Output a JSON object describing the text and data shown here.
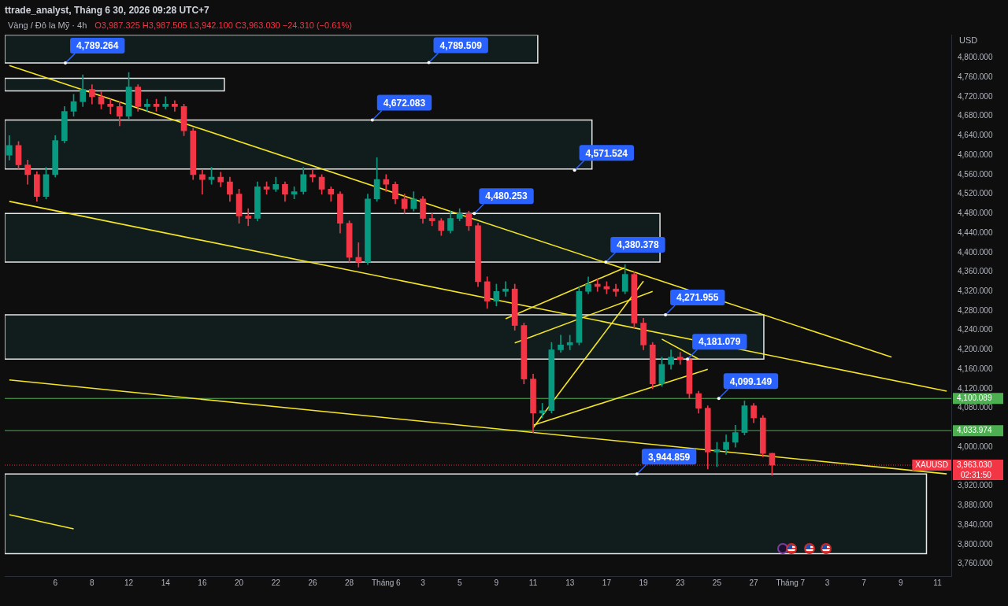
{
  "chart_data": {
    "type": "candlestick",
    "title": "ttrade_analyst, Tháng 6 30, 2026 09:28 UTC+7",
    "subtitle": "Vàng / Đô la Mỹ · 4h",
    "ylabel": "USD",
    "categories": [
      null,
      null,
      null,
      null,
      null,
      "6",
      null,
      null,
      null,
      "8",
      null,
      null,
      null,
      "12",
      null,
      null,
      null,
      "14",
      null,
      null,
      null,
      "16",
      null,
      null,
      null,
      "20",
      null,
      null,
      null,
      "22",
      null,
      null,
      null,
      "26",
      null,
      null,
      null,
      "28",
      null,
      null,
      null,
      "Tháng 6",
      null,
      null,
      null,
      "3",
      null,
      null,
      null,
      "5",
      null,
      null,
      null,
      "9",
      null,
      null,
      null,
      "11",
      null,
      null,
      null,
      "13",
      null,
      null,
      null,
      "17",
      null,
      null,
      null,
      "19",
      null,
      null,
      null,
      "23",
      null,
      null,
      null,
      "25",
      null,
      null,
      null,
      "27",
      null,
      null,
      null,
      "Tháng 7",
      null,
      null,
      null,
      "3",
      null,
      null,
      null,
      "7",
      null,
      null,
      null,
      "9",
      null,
      null,
      null,
      "11",
      null
    ],
    "ohlc": [
      [
        4600,
        4640,
        4590,
        4620
      ],
      [
        4620,
        4628,
        4572,
        4580
      ],
      [
        4580,
        4590,
        4540,
        4560
      ],
      [
        4560,
        4566,
        4505,
        4515
      ],
      [
        4515,
        4575,
        4510,
        4560
      ],
      [
        4560,
        4640,
        4555,
        4630
      ],
      [
        4630,
        4700,
        4625,
        4690
      ],
      [
        4690,
        4725,
        4680,
        4710
      ],
      [
        4710,
        4765,
        4700,
        4735
      ],
      [
        4735,
        4745,
        4705,
        4720
      ],
      [
        4720,
        4730,
        4695,
        4705
      ],
      [
        4705,
        4715,
        4685,
        4700
      ],
      [
        4700,
        4710,
        4660,
        4680
      ],
      [
        4680,
        4770,
        4675,
        4740
      ],
      [
        4740,
        4745,
        4690,
        4700
      ],
      [
        4700,
        4715,
        4690,
        4705
      ],
      [
        4705,
        4715,
        4690,
        4700
      ],
      [
        4700,
        4720,
        4695,
        4705
      ],
      [
        4705,
        4712,
        4690,
        4700
      ],
      [
        4700,
        4705,
        4640,
        4650
      ],
      [
        4650,
        4655,
        4550,
        4560
      ],
      [
        4560,
        4570,
        4520,
        4550
      ],
      [
        4550,
        4575,
        4540,
        4555
      ],
      [
        4555,
        4565,
        4535,
        4545
      ],
      [
        4545,
        4555,
        4505,
        4520
      ],
      [
        4520,
        4530,
        4460,
        4475
      ],
      [
        4475,
        4490,
        4455,
        4470
      ],
      [
        4470,
        4545,
        4465,
        4535
      ],
      [
        4535,
        4545,
        4520,
        4530
      ],
      [
        4530,
        4555,
        4525,
        4540
      ],
      [
        4540,
        4545,
        4505,
        4520
      ],
      [
        4520,
        4535,
        4510,
        4525
      ],
      [
        4525,
        4575,
        4520,
        4560
      ],
      [
        4560,
        4570,
        4545,
        4555
      ],
      [
        4555,
        4560,
        4520,
        4530
      ],
      [
        4530,
        4535,
        4505,
        4520
      ],
      [
        4520,
        4525,
        4440,
        4460
      ],
      [
        4460,
        4465,
        4380,
        4390
      ],
      [
        4390,
        4420,
        4370,
        4380
      ],
      [
        4380,
        4520,
        4375,
        4510
      ],
      [
        4510,
        4595,
        4505,
        4550
      ],
      [
        4550,
        4560,
        4525,
        4540
      ],
      [
        4540,
        4545,
        4500,
        4510
      ],
      [
        4510,
        4520,
        4480,
        4490
      ],
      [
        4490,
        4525,
        4485,
        4510
      ],
      [
        4510,
        4515,
        4460,
        4470
      ],
      [
        4470,
        4480,
        4455,
        4465
      ],
      [
        4465,
        4470,
        4435,
        4445
      ],
      [
        4445,
        4485,
        4440,
        4470
      ],
      [
        4470,
        4490,
        4465,
        4480
      ],
      [
        4480,
        4485,
        4445,
        4455
      ],
      [
        4455,
        4460,
        4330,
        4340
      ],
      [
        4340,
        4350,
        4285,
        4300
      ],
      [
        4300,
        4335,
        4290,
        4320
      ],
      [
        4320,
        4340,
        4310,
        4325
      ],
      [
        4325,
        4335,
        4240,
        4250
      ],
      [
        4250,
        4255,
        4130,
        4140
      ],
      [
        4140,
        4150,
        4030,
        4070
      ],
      [
        4070,
        4090,
        4060,
        4075
      ],
      [
        4075,
        4215,
        4070,
        4200
      ],
      [
        4200,
        4230,
        4195,
        4210
      ],
      [
        4210,
        4230,
        4200,
        4215
      ],
      [
        4215,
        4330,
        4210,
        4320
      ],
      [
        4320,
        4350,
        4315,
        4335
      ],
      [
        4335,
        4345,
        4320,
        4330
      ],
      [
        4330,
        4340,
        4315,
        4325
      ],
      [
        4325,
        4335,
        4310,
        4320
      ],
      [
        4320,
        4375,
        4315,
        4355
      ],
      [
        4355,
        4360,
        4245,
        4255
      ],
      [
        4255,
        4265,
        4200,
        4210
      ],
      [
        4210,
        4215,
        4120,
        4130
      ],
      [
        4130,
        4185,
        4125,
        4170
      ],
      [
        4170,
        4200,
        4160,
        4185
      ],
      [
        4185,
        4195,
        4170,
        4180
      ],
      [
        4180,
        4185,
        4100,
        4110
      ],
      [
        4110,
        4115,
        4070,
        4080
      ],
      [
        4080,
        4085,
        3955,
        3990
      ],
      [
        3990,
        4010,
        3960,
        3995
      ],
      [
        3995,
        4025,
        3985,
        4010
      ],
      [
        4010,
        4045,
        4000,
        4030
      ],
      [
        4030,
        4095,
        4025,
        4085
      ],
      [
        4085,
        4090,
        4050,
        4060
      ],
      [
        4060,
        4065,
        3980,
        3987
      ],
      [
        3987.325,
        3987.505,
        3942.1,
        3963.03
      ],
      null,
      null,
      null,
      null,
      null,
      null,
      null,
      null,
      null,
      null,
      null,
      null,
      null,
      null,
      null,
      null,
      null,
      null,
      null
    ],
    "colors": [
      "#089981",
      "#f23645",
      "#f23645",
      "#f23645",
      "#089981",
      "#089981",
      "#089981",
      "#089981",
      "#089981",
      "#f23645",
      "#f23645",
      "#f23645",
      "#f23645",
      "#089981",
      "#f23645",
      "#089981",
      "#f23645",
      "#089981",
      "#f23645",
      "#f23645",
      "#f23645",
      "#f23645",
      "#089981",
      "#f23645",
      "#f23645",
      "#f23645",
      "#f23645",
      "#089981",
      "#f23645",
      "#089981",
      "#f23645",
      "#089981",
      "#089981",
      "#f23645",
      "#f23645",
      "#f23645",
      "#f23645",
      "#f23645",
      "#f23645",
      "#089981",
      "#089981",
      "#f23645",
      "#f23645",
      "#f23645",
      "#089981",
      "#f23645",
      "#f23645",
      "#f23645",
      "#089981",
      "#089981",
      "#f23645",
      "#f23645",
      "#f23645",
      "#089981",
      "#089981",
      "#f23645",
      "#f23645",
      "#f23645",
      "#089981",
      "#089981",
      "#089981",
      "#089981",
      "#089981",
      "#089981",
      "#f23645",
      "#f23645",
      "#f23645",
      "#089981",
      "#f23645",
      "#f23645",
      "#f23645",
      "#089981",
      "#089981",
      "#f23645",
      "#f23645",
      "#f23645",
      "#f23645",
      "#089981",
      "#089981",
      "#089981",
      "#089981",
      "#f23645",
      "#f23645",
      "#f23645",
      null,
      null,
      null,
      null,
      null,
      null,
      null,
      null,
      null,
      null,
      null,
      null,
      null,
      null,
      null,
      null,
      null,
      null,
      null
    ],
    "series": [
      {
        "type": "line",
        "color": "#f5e625",
        "values": [
          4784,
          null,
          null,
          null,
          null,
          null,
          null,
          null,
          null,
          null,
          null,
          null,
          null,
          null,
          null,
          null,
          null,
          null,
          null,
          null,
          null,
          null,
          null,
          null,
          null,
          null,
          null,
          null,
          null,
          null,
          null,
          null,
          null,
          null,
          null,
          null,
          null,
          null,
          null,
          null,
          null,
          null,
          null,
          null,
          null,
          null,
          null,
          null,
          null,
          null,
          null,
          null,
          null,
          null,
          null,
          null,
          null,
          null,
          null,
          null,
          null,
          null,
          null,
          null,
          null,
          null,
          null,
          null,
          null,
          null,
          null,
          null,
          null,
          null,
          null,
          null,
          null,
          null,
          null,
          null,
          null,
          null,
          null,
          null,
          null,
          null,
          null,
          null,
          null,
          null,
          null,
          null,
          null,
          null,
          null,
          null,
          4185,
          null,
          null,
          null,
          null,
          null,
          null
        ]
      },
      {
        "type": "line",
        "color": "#f5e625",
        "values": [
          4505,
          null,
          null,
          null,
          null,
          null,
          null,
          null,
          null,
          null,
          null,
          null,
          null,
          null,
          null,
          null,
          null,
          null,
          null,
          null,
          null,
          null,
          null,
          null,
          null,
          null,
          null,
          null,
          null,
          null,
          null,
          null,
          null,
          null,
          null,
          null,
          null,
          null,
          null,
          null,
          null,
          null,
          null,
          null,
          null,
          null,
          null,
          null,
          null,
          null,
          null,
          null,
          null,
          null,
          null,
          null,
          null,
          null,
          null,
          null,
          null,
          null,
          null,
          null,
          null,
          null,
          null,
          null,
          null,
          null,
          null,
          null,
          null,
          null,
          null,
          null,
          null,
          null,
          null,
          null,
          null,
          null,
          null,
          null,
          null,
          null,
          null,
          null,
          null,
          null,
          null,
          null,
          null,
          null,
          null,
          null,
          null,
          null,
          null,
          null,
          null,
          null,
          4115
        ]
      },
      {
        "type": "line",
        "color": "#f5e625",
        "values": [
          4138,
          null,
          null,
          null,
          null,
          null,
          null,
          null,
          null,
          null,
          null,
          null,
          null,
          null,
          null,
          null,
          null,
          null,
          null,
          null,
          null,
          null,
          null,
          null,
          null,
          null,
          null,
          null,
          null,
          null,
          null,
          null,
          null,
          null,
          null,
          null,
          null,
          null,
          null,
          null,
          null,
          null,
          null,
          null,
          null,
          null,
          null,
          null,
          null,
          null,
          null,
          null,
          null,
          null,
          null,
          null,
          null,
          null,
          null,
          null,
          null,
          null,
          null,
          null,
          null,
          null,
          null,
          null,
          null,
          null,
          null,
          null,
          null,
          null,
          null,
          null,
          null,
          null,
          null,
          null,
          null,
          null,
          null,
          null,
          null,
          null,
          null,
          null,
          null,
          null,
          null,
          null,
          null,
          null,
          null,
          null,
          null,
          null,
          null,
          null,
          null,
          null,
          3945
        ]
      },
      {
        "type": "line",
        "color": "#f5e625",
        "values": [
          3861,
          null,
          null,
          null,
          null,
          null,
          null,
          3832,
          null,
          null,
          null,
          null,
          null,
          null,
          null,
          null,
          null,
          null,
          null,
          null,
          null,
          null,
          null,
          null,
          null,
          null,
          null,
          null,
          null,
          null,
          null,
          null,
          null,
          null,
          null,
          null,
          null,
          null,
          null,
          null,
          null,
          null,
          null,
          null,
          null,
          null,
          null,
          null,
          null,
          null,
          null,
          null,
          null,
          null,
          null,
          null,
          null,
          null,
          null,
          null,
          null,
          null,
          null,
          null,
          null,
          null,
          null,
          null,
          null,
          null,
          null,
          null,
          null,
          null,
          null,
          null,
          null,
          null,
          null,
          null,
          null,
          null,
          null,
          null,
          null,
          null,
          null,
          null,
          null,
          null,
          null,
          null,
          null,
          null,
          null,
          null,
          null,
          null,
          null,
          null,
          null,
          null,
          null
        ]
      },
      {
        "type": "line",
        "color": "#f5e625",
        "values": [
          null,
          null,
          null,
          null,
          null,
          null,
          null,
          null,
          null,
          null,
          null,
          null,
          null,
          null,
          null,
          null,
          null,
          null,
          null,
          null,
          null,
          null,
          null,
          null,
          null,
          null,
          null,
          null,
          null,
          null,
          null,
          null,
          null,
          null,
          null,
          null,
          null,
          null,
          null,
          null,
          null,
          null,
          null,
          null,
          null,
          null,
          null,
          null,
          null,
          null,
          null,
          null,
          null,
          null,
          4264,
          null,
          null,
          null,
          null,
          null,
          null,
          null,
          null,
          null,
          null,
          null,
          null,
          4369,
          null,
          null,
          null,
          null,
          null,
          null,
          null,
          null,
          null,
          null,
          null,
          null,
          null,
          null,
          null,
          null,
          null,
          null,
          null,
          null,
          null,
          null,
          null,
          null,
          null,
          null,
          null,
          null,
          null,
          null,
          null,
          null,
          null,
          null,
          null
        ]
      },
      {
        "type": "line",
        "color": "#f5e625",
        "values": [
          null,
          null,
          null,
          null,
          null,
          null,
          null,
          null,
          null,
          null,
          null,
          null,
          null,
          null,
          null,
          null,
          null,
          null,
          null,
          null,
          null,
          null,
          null,
          null,
          null,
          null,
          null,
          null,
          null,
          null,
          null,
          null,
          null,
          null,
          null,
          null,
          null,
          null,
          null,
          null,
          null,
          null,
          null,
          null,
          null,
          null,
          null,
          null,
          null,
          null,
          null,
          null,
          null,
          null,
          null,
          4214,
          null,
          null,
          null,
          null,
          null,
          null,
          null,
          null,
          null,
          null,
          null,
          null,
          null,
          null,
          4320,
          null,
          null,
          null,
          null,
          null,
          null,
          null,
          null,
          null,
          null,
          null,
          null,
          null,
          null,
          null,
          null,
          null,
          null,
          null,
          null,
          null,
          null,
          null,
          null,
          null,
          null,
          null,
          null,
          null,
          null,
          null,
          null
        ]
      },
      {
        "type": "line",
        "color": "#f5e625",
        "values": [
          null,
          null,
          null,
          null,
          null,
          null,
          null,
          null,
          null,
          null,
          null,
          null,
          null,
          null,
          null,
          null,
          null,
          null,
          null,
          null,
          null,
          null,
          null,
          null,
          null,
          null,
          null,
          null,
          null,
          null,
          null,
          null,
          null,
          null,
          null,
          null,
          null,
          null,
          null,
          null,
          null,
          null,
          null,
          null,
          null,
          null,
          null,
          null,
          null,
          null,
          null,
          null,
          null,
          null,
          null,
          null,
          null,
          4040,
          null,
          null,
          null,
          null,
          null,
          null,
          null,
          null,
          null,
          null,
          null,
          4341,
          null,
          null,
          null,
          null,
          null,
          null,
          null,
          null,
          null,
          null,
          null,
          null,
          null,
          null,
          null,
          null,
          null,
          null,
          null,
          null,
          null,
          null,
          null,
          null,
          null,
          null,
          null,
          null,
          null,
          null,
          null,
          null,
          null
        ]
      },
      {
        "type": "line",
        "color": "#f5e625",
        "values": [
          null,
          null,
          null,
          null,
          null,
          null,
          null,
          null,
          null,
          null,
          null,
          null,
          null,
          null,
          null,
          null,
          null,
          null,
          null,
          null,
          null,
          null,
          null,
          null,
          null,
          null,
          null,
          null,
          null,
          null,
          null,
          null,
          null,
          null,
          null,
          null,
          null,
          null,
          null,
          null,
          null,
          null,
          null,
          null,
          null,
          null,
          null,
          null,
          null,
          null,
          null,
          null,
          null,
          null,
          null,
          null,
          null,
          4045,
          null,
          null,
          null,
          null,
          null,
          null,
          null,
          null,
          null,
          null,
          null,
          null,
          null,
          null,
          null,
          null,
          null,
          null,
          4160,
          null,
          null,
          null,
          null,
          null,
          null,
          null,
          null,
          null,
          null,
          null,
          null,
          null,
          null,
          null,
          null,
          null,
          null,
          null,
          null,
          null,
          null,
          null,
          null,
          null,
          null
        ]
      },
      {
        "type": "line",
        "color": "#f5e625",
        "values": [
          null,
          null,
          null,
          null,
          null,
          null,
          null,
          null,
          null,
          null,
          null,
          null,
          null,
          null,
          null,
          null,
          null,
          null,
          null,
          null,
          null,
          null,
          null,
          null,
          null,
          null,
          null,
          null,
          null,
          null,
          null,
          null,
          null,
          null,
          null,
          null,
          null,
          null,
          null,
          null,
          null,
          null,
          null,
          null,
          null,
          null,
          null,
          null,
          null,
          null,
          null,
          null,
          null,
          null,
          null,
          null,
          null,
          null,
          null,
          null,
          null,
          null,
          null,
          null,
          null,
          null,
          null,
          null,
          null,
          null,
          null,
          4222,
          null,
          null,
          null,
          4181,
          null,
          null,
          null,
          null,
          null,
          null,
          null,
          null,
          null,
          null,
          null,
          null,
          null,
          null,
          null,
          null,
          null,
          null,
          null,
          null,
          null,
          null,
          null,
          null,
          null,
          null,
          null
        ]
      }
    ],
    "ylim": [
      3735,
      4847
    ],
    "yticks": [
      {
        "value": 3760,
        "label": "3,760.000"
      },
      {
        "value": 3800,
        "label": "3,800.000"
      },
      {
        "value": 3840,
        "label": "3,840.000"
      },
      {
        "value": 3880,
        "label": "3,880.000"
      },
      {
        "value": 3920,
        "label": "3,920.000"
      },
      {
        "value": 4000,
        "label": "4,000.000"
      },
      {
        "value": 4080,
        "label": "4,080.000"
      },
      {
        "value": 4120,
        "label": "4,120.000"
      },
      {
        "value": 4160,
        "label": "4,160.000"
      },
      {
        "value": 4200,
        "label": "4,200.000"
      },
      {
        "value": 4240,
        "label": "4,240.000"
      },
      {
        "value": 4280,
        "label": "4,280.000"
      },
      {
        "value": 4320,
        "label": "4,320.000"
      },
      {
        "value": 4360,
        "label": "4,360.000"
      },
      {
        "value": 4400,
        "label": "4,400.000"
      },
      {
        "value": 4440,
        "label": "4,440.000"
      },
      {
        "value": 4480,
        "label": "4,480.000"
      },
      {
        "value": 4520,
        "label": "4,520.000"
      },
      {
        "value": 4560,
        "label": "4,560.000"
      },
      {
        "value": 4600,
        "label": "4,600.000"
      },
      {
        "value": 4640,
        "label": "4,640.000"
      },
      {
        "value": 4680,
        "label": "4,680.000"
      },
      {
        "value": 4720,
        "label": "4,720.000"
      },
      {
        "value": 4760,
        "label": "4,760.000"
      },
      {
        "value": 4800,
        "label": "4,800.000"
      }
    ],
    "grid": false,
    "legend": false,
    "bands": [
      {
        "axis": "y",
        "from": 4789.264,
        "to": 4847,
        "color": "#111d1c"
      },
      {
        "axis": "y",
        "from": 4732,
        "to": 4758,
        "color": "#111d1c"
      },
      {
        "axis": "y",
        "from": 4571.524,
        "to": 4672.083,
        "color": "#111d1c"
      },
      {
        "axis": "y",
        "from": 4380.378,
        "to": 4480.253,
        "color": "#111d1c"
      },
      {
        "axis": "y",
        "from": 4181.079,
        "to": 4271.955,
        "color": "#111d1c"
      },
      {
        "axis": "y",
        "from": 3781,
        "to": 3944.859,
        "color": "#111d1c"
      }
    ],
    "ref_lines": [
      {
        "axis": "y",
        "value": 4100.089,
        "label": "4,100.089",
        "color": "#4caf50"
      },
      {
        "axis": "y",
        "value": 4033.974,
        "label": "4,033.974",
        "color": "#4caf50"
      },
      {
        "axis": "y",
        "value": 3963.03,
        "label": "3,963.030",
        "color": "#f23645",
        "line_style": "dotted"
      }
    ],
    "annotations": [
      "O3,987.325 H3,987.505 L3,942.100 C3,963.030 −24.310 (−0.61%)",
      "XAUUSD",
      "02:31:50",
      {
        "text": "4,789.264",
        "y": 4789.264
      },
      "4,789.509",
      {
        "text": "4,672.083",
        "y": 4672.083
      },
      "4,571.524",
      {
        "text": "4,480.253",
        "y": 4480.253
      },
      {
        "text": "4,380.378",
        "y": 4380.378
      },
      {
        "text": "4,271.955",
        "y": 4271.955
      },
      {
        "text": "4,181.079",
        "y": 4181.079
      },
      {
        "text": "4,099.149",
        "y": 4100.089
      },
      {
        "text": "3,944.859",
        "y": 3944.859
      }
    ]
  }
}
